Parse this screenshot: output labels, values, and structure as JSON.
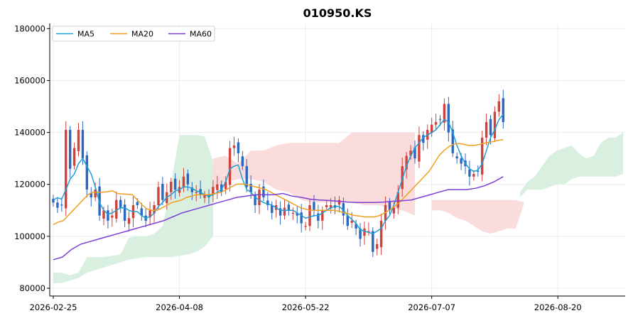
{
  "chart_data": {
    "type": "candlestick",
    "title": "010950.KS",
    "xlabel": "",
    "ylabel": "",
    "ylim": [
      77000,
      182000
    ],
    "grid": true,
    "legend_position": "top-left",
    "x_tick_labels": [
      "2026-02-25",
      "2026-04-08",
      "2026-05-22",
      "2026-07-07",
      "2026-08-20"
    ],
    "y_ticks": [
      80000,
      100000,
      120000,
      140000,
      160000,
      180000
    ],
    "y_tick_labels": [
      "80000",
      "100000",
      "120000",
      "140000",
      "160000",
      "180000"
    ],
    "colors": {
      "up": "#d0413c",
      "down": "#2b66c2",
      "ma5": "#1f9fd6",
      "ma20": "#f0a020",
      "ma60": "#7b3fd6",
      "cloud_bull": "#d9efe0",
      "cloud_bear": "#fbdcdc",
      "grid": "#ececec",
      "axis": "#000000"
    },
    "series": [
      {
        "name": "MA5",
        "key": "ma5"
      },
      {
        "name": "MA20",
        "key": "ma20"
      },
      {
        "name": "MA60",
        "key": "ma60"
      }
    ],
    "closes": [
      113000,
      111000,
      112000,
      141000,
      126000,
      134000,
      141000,
      130000,
      118000,
      115000,
      118000,
      108000,
      110000,
      106000,
      108000,
      114000,
      111000,
      106000,
      107000,
      112000,
      112000,
      108000,
      106000,
      110000,
      112000,
      119000,
      114000,
      117000,
      121000,
      118000,
      119000,
      123000,
      120000,
      117000,
      117000,
      116000,
      116000,
      115000,
      119000,
      120000,
      117000,
      121000,
      134000,
      135000,
      132000,
      127000,
      119000,
      117000,
      112000,
      118000,
      115000,
      112000,
      109000,
      112000,
      108000,
      111000,
      110000,
      109000,
      108000,
      105000,
      104000,
      112000,
      110000,
      106000,
      110000,
      112000,
      112000,
      111000,
      114000,
      108000,
      104000,
      106000,
      103000,
      99000,
      103000,
      102000,
      94000,
      97000,
      106000,
      112000,
      110000,
      111000,
      117000,
      127000,
      131000,
      133000,
      130000,
      139000,
      136000,
      141000,
      143000,
      144000,
      145000,
      151000,
      140000,
      132000,
      130000,
      128000,
      127000,
      123000,
      124000,
      125000,
      138000,
      144000,
      139000,
      148000,
      152000,
      144000
    ],
    "ma5": [
      114000,
      114900,
      114300,
      118000,
      122000,
      124000,
      128000,
      130000,
      127000,
      124000,
      119000,
      113000,
      110000,
      108500,
      109000,
      110000,
      111000,
      111000,
      110000,
      109500,
      109500,
      108000,
      107000,
      107500,
      109000,
      111500,
      113000,
      115000,
      116000,
      117500,
      118000,
      119000,
      119000,
      118500,
      117500,
      117000,
      116000,
      115500,
      116000,
      117000,
      118000,
      121000,
      126000,
      127000,
      127500,
      122000,
      118000,
      117000,
      115000,
      114000,
      113000,
      112500,
      112000,
      111000,
      110000,
      110000,
      110000,
      110000,
      109000,
      108000,
      107000,
      107500,
      108000,
      108000,
      109000,
      110000,
      111000,
      111500,
      111500,
      110000,
      108000,
      106500,
      105000,
      102500,
      102000,
      101500,
      101000,
      102000,
      103000,
      106000,
      108000,
      112000,
      117000,
      122000,
      127000,
      131000,
      134000,
      136000,
      138000,
      139000,
      140000,
      141000,
      143000,
      145000,
      144000,
      140000,
      135000,
      131000,
      128000,
      126000,
      125000,
      125500,
      128000,
      133000,
      138000,
      141000,
      145000,
      147000
    ],
    "ma20": [
      104500,
      105500,
      106000,
      108000,
      110000,
      112000,
      114000,
      116000,
      117000,
      117000,
      117000,
      117200,
      117500,
      116500,
      116300,
      116200,
      116000,
      114000,
      112000,
      110500,
      110000,
      110000,
      111000,
      112000,
      113000,
      113500,
      114000,
      115000,
      115500,
      116000,
      116000,
      116000,
      116200,
      116600,
      117000,
      118000,
      119000,
      120000,
      120200,
      120000,
      119500,
      119000,
      118500,
      118000,
      117000,
      116000,
      115000,
      114000,
      113000,
      112000,
      111000,
      110500,
      110000,
      110000,
      110000,
      110000,
      110000,
      110000,
      109500,
      109000,
      108500,
      108000,
      107800,
      107500,
      107500,
      107500,
      108000,
      109000,
      110000,
      111500,
      113000,
      115000,
      117000,
      119000,
      121000,
      123000,
      125000,
      128000,
      131000,
      133000,
      134500,
      135500,
      135800,
      135500,
      135000,
      135000,
      135300,
      135800,
      136200,
      136500,
      137000,
      137200
    ],
    "ma60": [
      91000,
      92000,
      95000,
      97000,
      98000,
      99000,
      100000,
      101000,
      102000,
      103000,
      104000,
      105000,
      106000,
      107500,
      109000,
      110000,
      111000,
      112000,
      113000,
      114000,
      115000,
      115500,
      116000,
      116000,
      116000,
      116500,
      115500,
      115000,
      114300,
      114000,
      113800,
      113500,
      113200,
      113000,
      113000,
      113000,
      113200,
      113500,
      113700,
      114000,
      115000,
      116000,
      117000,
      118000,
      118000,
      118000,
      118500,
      119500,
      121000,
      123000
    ],
    "cloud_bull_1": {
      "top": [
        86000,
        86000,
        85000,
        86000,
        92000,
        92000,
        92000,
        92500,
        93000,
        99500,
        100000,
        100000,
        101000,
        104000,
        120000,
        139000,
        139000,
        139000,
        138500,
        129000
      ],
      "bottom": [
        82000,
        82000,
        83000,
        84000,
        86000,
        87000,
        88000,
        89000,
        90000,
        91000,
        91500,
        92000,
        92000,
        92000,
        92000,
        92500,
        93000,
        94000,
        96000,
        100000
      ]
    },
    "cloud_bear_1": {
      "top": [
        130000,
        131000,
        128000,
        133000,
        133000,
        135000,
        136000,
        136000,
        136000,
        136000,
        136000,
        140000,
        140000,
        140000,
        140000,
        140000,
        140000
      ],
      "bottom": [
        118000,
        121000,
        122000,
        122000,
        121000,
        118000,
        117000,
        114000,
        113000,
        113000,
        113000,
        113000,
        112000,
        112000,
        111000,
        110000,
        108000
      ]
    },
    "cloud_bear_2": {
      "top": [
        114000,
        114000,
        114000,
        114000,
        114000,
        114000,
        114000,
        114000,
        114000,
        114000,
        114000,
        113000
      ],
      "bottom": [
        110000,
        110000,
        109000,
        107000,
        106000,
        104000,
        102000,
        101000,
        102000,
        103000,
        103000,
        113000
      ]
    },
    "cloud_bull_2": {
      "top": [
        117000,
        121000,
        123000,
        127000,
        131000,
        133000,
        134000,
        135000,
        132000,
        130000,
        131000,
        136000,
        138000,
        138000,
        140000
      ],
      "bottom": [
        115000,
        118000,
        118000,
        118000,
        119000,
        120000,
        120000,
        122000,
        123000,
        123000,
        123000,
        123000,
        123000,
        123000,
        124000
      ]
    }
  }
}
